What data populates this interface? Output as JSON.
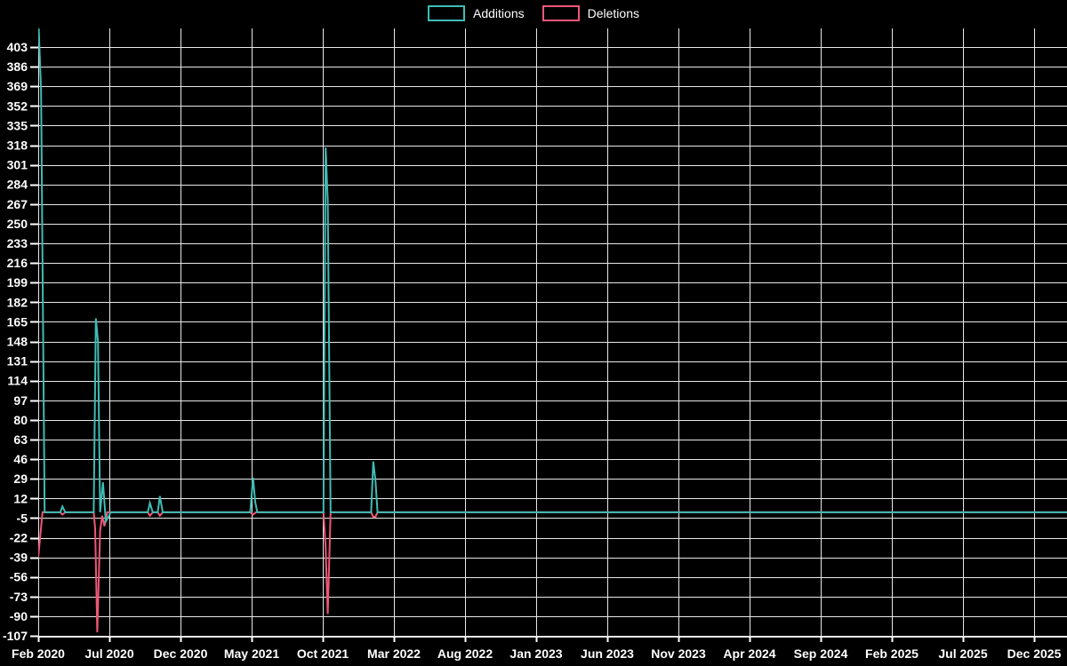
{
  "legend": {
    "position": "top-center",
    "items": [
      {
        "label": "Additions",
        "color": "#3fbcb4",
        "swatch_icon": "outlined-rect-swatch"
      },
      {
        "label": "Deletions",
        "color": "#ef5777",
        "swatch_icon": "outlined-rect-swatch"
      }
    ]
  },
  "colors": {
    "background": "#000000",
    "grid": "#e8e8e8",
    "text": "#ffffff",
    "additions": "#3fbcb4",
    "deletions": "#ef5777"
  },
  "chart_data": {
    "type": "line",
    "title": "",
    "xlabel": "",
    "ylabel": "",
    "grid": true,
    "legend_position": "top-center",
    "x_tick_labels": [
      "Feb 2020",
      "Jul 2020",
      "Dec 2020",
      "May 2021",
      "Oct 2021",
      "Mar 2022",
      "Aug 2022",
      "Jan 2023",
      "Jun 2023",
      "Nov 2023",
      "Apr 2024",
      "Sep 2024",
      "Feb 2025",
      "Jul 2025",
      "Dec 2025"
    ],
    "x_unit": "months since Feb 2020, ticks every 5 months",
    "x_domain_months": [
      0,
      70
    ],
    "y_ticks": [
      403,
      386,
      369,
      352,
      335,
      318,
      301,
      284,
      267,
      250,
      233,
      216,
      199,
      182,
      165,
      148,
      131,
      114,
      97,
      80,
      63,
      46,
      29,
      12,
      -5,
      -22,
      -39,
      -56,
      -73,
      -90,
      -107
    ],
    "ylim": [
      -107,
      403
    ],
    "y_step": 17,
    "series": [
      {
        "name": "Additions",
        "color": "#3fbcb4",
        "points": [
          [
            0,
            430
          ],
          [
            0.2,
            365
          ],
          [
            0.45,
            0
          ],
          [
            1.55,
            0
          ],
          [
            1.7,
            5
          ],
          [
            1.9,
            0
          ],
          [
            3.9,
            0
          ],
          [
            4.05,
            168
          ],
          [
            4.2,
            148
          ],
          [
            4.35,
            0
          ],
          [
            4.55,
            26
          ],
          [
            4.75,
            -8
          ],
          [
            5.1,
            0
          ],
          [
            7.7,
            0
          ],
          [
            7.85,
            8
          ],
          [
            8.05,
            0
          ],
          [
            8.4,
            0
          ],
          [
            8.55,
            14
          ],
          [
            8.75,
            0
          ],
          [
            14.9,
            0
          ],
          [
            15.1,
            30
          ],
          [
            15.25,
            9
          ],
          [
            15.4,
            0
          ],
          [
            20.05,
            0
          ],
          [
            20.2,
            316
          ],
          [
            20.35,
            270
          ],
          [
            20.55,
            0
          ],
          [
            23.4,
            0
          ],
          [
            23.55,
            44
          ],
          [
            23.7,
            28
          ],
          [
            23.85,
            0
          ],
          [
            72.4,
            0
          ]
        ]
      },
      {
        "name": "Deletions",
        "color": "#ef5777",
        "points": [
          [
            0,
            -39
          ],
          [
            0.3,
            0
          ],
          [
            1.55,
            0
          ],
          [
            1.7,
            -2
          ],
          [
            1.9,
            0
          ],
          [
            3.9,
            0
          ],
          [
            4,
            -14
          ],
          [
            4.15,
            -104
          ],
          [
            4.35,
            -16
          ],
          [
            4.5,
            -3
          ],
          [
            4.65,
            -12
          ],
          [
            4.85,
            0
          ],
          [
            7.7,
            0
          ],
          [
            7.85,
            -3
          ],
          [
            8.05,
            0
          ],
          [
            8.4,
            0
          ],
          [
            8.55,
            -3
          ],
          [
            8.75,
            0
          ],
          [
            14.9,
            0
          ],
          [
            15.1,
            -2
          ],
          [
            15.3,
            0
          ],
          [
            20.05,
            0
          ],
          [
            20.2,
            -30
          ],
          [
            20.35,
            -88
          ],
          [
            20.55,
            0
          ],
          [
            23.4,
            0
          ],
          [
            23.55,
            -4
          ],
          [
            23.7,
            -4
          ],
          [
            23.85,
            0
          ],
          [
            72.4,
            0
          ]
        ]
      }
    ],
    "notes": "First Additions spike at Feb 2020 is clipped at top of plot area (exceeds 403)."
  }
}
